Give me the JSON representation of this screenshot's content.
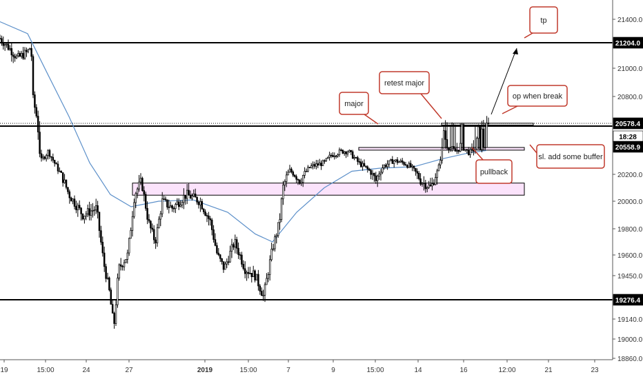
{
  "chart_data": {
    "type": "candlestick",
    "title": "",
    "price_axis": {
      "ticks": [
        "21400.0",
        "21000.0",
        "20800.0",
        "20200.0",
        "20000.0",
        "19800.0",
        "19600.0",
        "19450.0",
        "19140.0",
        "19000.0",
        "18860.0"
      ]
    },
    "time_axis": {
      "ticks": [
        "19",
        "15:00",
        "24",
        "27",
        "2019",
        "15:00",
        "7",
        "9",
        "15:00",
        "14",
        "16",
        "12:00",
        "21",
        "23"
      ],
      "bold": [
        "2019"
      ]
    },
    "price_tags": [
      {
        "label": "21204.0",
        "color": "#000000",
        "text_color": "#ffffff"
      },
      {
        "label": "20578.4",
        "color": "#000000",
        "text_color": "#ffffff"
      },
      {
        "label": "18:28",
        "color": "#ffffff",
        "text_color": "#000000"
      },
      {
        "label": "20558.9",
        "color": "#000000",
        "text_color": "#ffffff"
      },
      {
        "label": "19276.4",
        "color": "#000000",
        "text_color": "#ffffff"
      }
    ],
    "horizontal_levels": [
      {
        "price": 21204.0,
        "style": "solid"
      },
      {
        "price": 20578.4,
        "style": "solid"
      },
      {
        "price": 19276.4,
        "style": "solid"
      }
    ],
    "zones": [
      {
        "from": 20045,
        "to": 20135,
        "fill": "#fbe3fb"
      },
      {
        "from": 20515,
        "to": 20550,
        "fill": "#fbe3fb"
      },
      {
        "from": 20586,
        "to": 20600,
        "fill": "#ffffff"
      }
    ],
    "annotations": [
      {
        "text": "tp"
      },
      {
        "text": "retest major"
      },
      {
        "text": "op when break"
      },
      {
        "text": "major"
      },
      {
        "text": "sl. add some buffer"
      },
      {
        "text": "pullback"
      }
    ],
    "moving_average_color": "#5b8fc9",
    "candle_color": "#000000",
    "annotation_border": "#c0392b"
  }
}
